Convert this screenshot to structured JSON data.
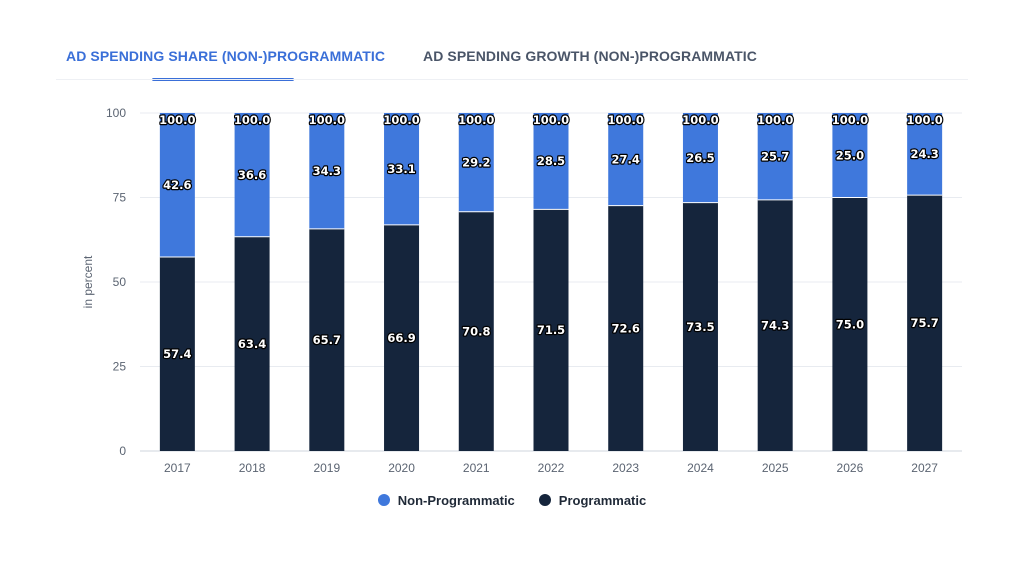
{
  "tabs": {
    "share": "AD SPENDING SHARE (NON-)PROGRAMMATIC",
    "growth": "AD SPENDING GROWTH (NON-)PROGRAMMATIC"
  },
  "colors": {
    "programmatic": "#15253c",
    "non_programmatic": "#3f78dc",
    "accent": "#3a6fd8"
  },
  "chart_data": {
    "type": "bar",
    "stacked": true,
    "categories": [
      "2017",
      "2018",
      "2019",
      "2020",
      "2021",
      "2022",
      "2023",
      "2024",
      "2025",
      "2026",
      "2027"
    ],
    "series": [
      {
        "name": "Programmatic",
        "values": [
          57.4,
          63.4,
          65.7,
          66.9,
          70.8,
          71.5,
          72.6,
          73.5,
          74.3,
          75.0,
          75.7
        ]
      },
      {
        "name": "Non-Programmatic",
        "values": [
          42.6,
          36.6,
          34.3,
          33.1,
          29.2,
          28.5,
          27.4,
          26.5,
          25.7,
          25.0,
          24.3
        ]
      }
    ],
    "totals": [
      100.0,
      100.0,
      100.0,
      100.0,
      100.0,
      100.0,
      100.0,
      100.0,
      100.0,
      100.0,
      100.0
    ],
    "ylabel": "in percent",
    "ylim": [
      0,
      100
    ],
    "yticks": [
      "0",
      "25",
      "50",
      "75",
      "100"
    ],
    "grid": true,
    "legend_position": "bottom"
  },
  "legend": {
    "items": [
      "Non-Programmatic",
      "Programmatic"
    ]
  }
}
